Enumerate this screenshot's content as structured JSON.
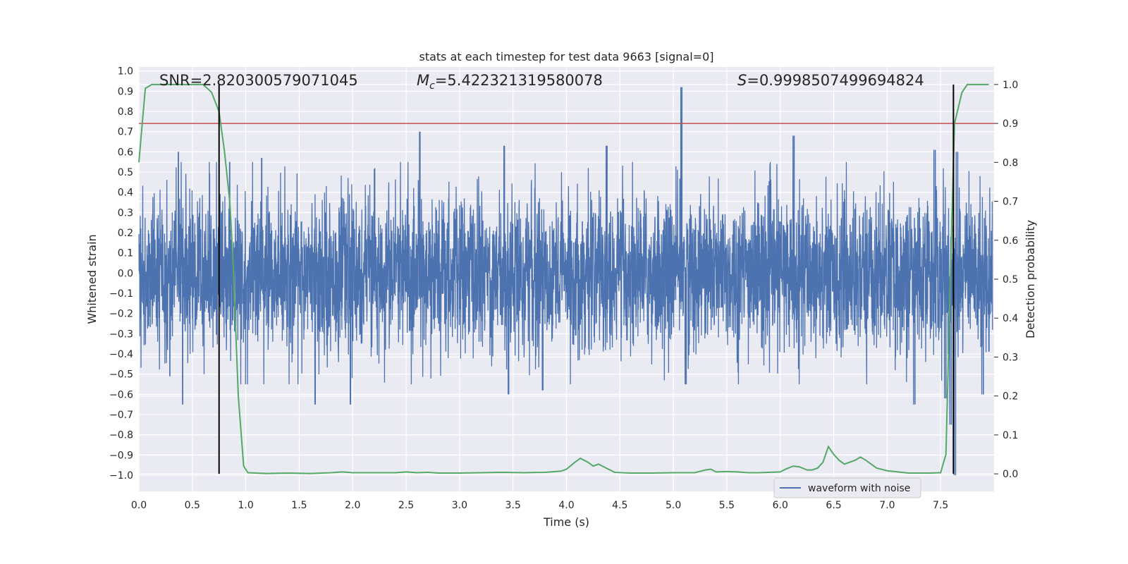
{
  "chart_data": {
    "type": "line",
    "title": "stats at each timestep for test data 9663 [signal=0]",
    "xlabel": "Time (s)",
    "ylabel": "Whitened strain",
    "y2label": "Detection probability",
    "xlim": [
      0.0,
      8.0
    ],
    "ylim": [
      -1.08,
      1.02
    ],
    "y2lim": [
      -0.045,
      1.045
    ],
    "x_ticks": [
      "0.0",
      "0.5",
      "1.0",
      "1.5",
      "2.0",
      "2.5",
      "3.0",
      "3.5",
      "4.0",
      "4.5",
      "5.0",
      "5.5",
      "6.0",
      "6.5",
      "7.0",
      "7.5"
    ],
    "y_ticks": [
      "1.0",
      "0.9",
      "0.8",
      "0.7",
      "0.6",
      "0.5",
      "0.4",
      "0.3",
      "0.2",
      "0.1",
      "0.0",
      "−0.1",
      "−0.2",
      "−0.3",
      "−0.4",
      "−0.5",
      "−0.6",
      "−0.7",
      "−0.8",
      "−0.9",
      "−1.0"
    ],
    "y2_ticks": [
      "1.0",
      "0.9",
      "0.8",
      "0.7",
      "0.6",
      "0.5",
      "0.4",
      "0.3",
      "0.2",
      "0.1",
      "0.0"
    ],
    "grid": true,
    "legend": {
      "placement": "lower-right",
      "entries": [
        "waveform with noise"
      ]
    },
    "annotations": {
      "snr": "SNR=2.820300579071045",
      "mc_prefix": "M",
      "mc_sub": "c",
      "mc_value": "=5.422321319580078",
      "s_prefix": "S",
      "s_value": "=0.9998507499694824"
    },
    "threshold": 0.9,
    "markers_x": [
      0.75,
      7.62
    ],
    "waveform": {
      "name": "waveform with noise",
      "color": "#4c72b0",
      "noise_scale": 0.3,
      "spikes": [
        {
          "x": 0.37,
          "y": 0.6
        },
        {
          "x": 0.41,
          "y": -0.65
        },
        {
          "x": 0.29,
          "y": -0.51
        },
        {
          "x": 0.85,
          "y": 0.55
        },
        {
          "x": 1.15,
          "y": 0.57
        },
        {
          "x": 1.65,
          "y": -0.65
        },
        {
          "x": 1.98,
          "y": -0.65
        },
        {
          "x": 2.63,
          "y": 0.7
        },
        {
          "x": 3.42,
          "y": 0.63
        },
        {
          "x": 3.46,
          "y": -0.6
        },
        {
          "x": 3.78,
          "y": -0.58
        },
        {
          "x": 4.38,
          "y": 0.63
        },
        {
          "x": 5.08,
          "y": 0.92
        },
        {
          "x": 5.12,
          "y": -0.55
        },
        {
          "x": 6.13,
          "y": 0.68
        },
        {
          "x": 7.26,
          "y": -0.65
        },
        {
          "x": 7.45,
          "y": 0.61
        },
        {
          "x": 7.55,
          "y": -0.62
        },
        {
          "x": 7.6,
          "y": -0.75
        },
        {
          "x": 7.64,
          "y": -1.0
        },
        {
          "x": 7.66,
          "y": 0.6
        },
        {
          "x": 7.9,
          "y": -0.6
        }
      ]
    },
    "probability": {
      "color": "#55a868",
      "x": [
        0.0,
        0.06,
        0.12,
        0.2,
        0.3,
        0.4,
        0.5,
        0.6,
        0.68,
        0.75,
        0.8,
        0.85,
        0.88,
        0.93,
        0.98,
        1.02,
        1.2,
        1.4,
        1.6,
        1.8,
        1.9,
        2.0,
        2.2,
        2.4,
        2.5,
        2.6,
        2.7,
        2.8,
        3.0,
        3.2,
        3.4,
        3.6,
        3.8,
        3.95,
        4.0,
        4.08,
        4.13,
        4.2,
        4.25,
        4.3,
        4.35,
        4.45,
        4.6,
        4.8,
        5.0,
        5.2,
        5.3,
        5.35,
        5.4,
        5.5,
        5.6,
        5.7,
        5.8,
        6.0,
        6.05,
        6.12,
        6.18,
        6.25,
        6.3,
        6.35,
        6.4,
        6.45,
        6.5,
        6.55,
        6.6,
        6.7,
        6.75,
        6.8,
        6.85,
        6.9,
        7.0,
        7.2,
        7.4,
        7.5,
        7.55,
        7.6,
        7.63,
        7.7,
        7.75,
        7.85,
        7.95
      ],
      "y": [
        0.8,
        0.99,
        1.0,
        1.0,
        1.0,
        1.0,
        1.0,
        1.0,
        0.98,
        0.93,
        0.83,
        0.7,
        0.55,
        0.2,
        0.02,
        0.003,
        0.001,
        0.002,
        0.001,
        0.003,
        0.005,
        0.003,
        0.003,
        0.003,
        0.005,
        0.003,
        0.004,
        0.002,
        0.002,
        0.003,
        0.004,
        0.003,
        0.004,
        0.007,
        0.012,
        0.03,
        0.04,
        0.03,
        0.02,
        0.025,
        0.018,
        0.004,
        0.002,
        0.002,
        0.003,
        0.003,
        0.01,
        0.012,
        0.005,
        0.006,
        0.005,
        0.003,
        0.003,
        0.005,
        0.012,
        0.02,
        0.018,
        0.01,
        0.01,
        0.015,
        0.03,
        0.07,
        0.05,
        0.035,
        0.025,
        0.035,
        0.043,
        0.035,
        0.025,
        0.015,
        0.008,
        0.002,
        0.002,
        0.003,
        0.05,
        0.6,
        0.9,
        0.98,
        1.0,
        1.0,
        1.0
      ]
    },
    "threshold_color": "#c44e52",
    "marker_color": "#000000",
    "background_color": "#eaeaf2",
    "grid_color": "#ffffff"
  }
}
